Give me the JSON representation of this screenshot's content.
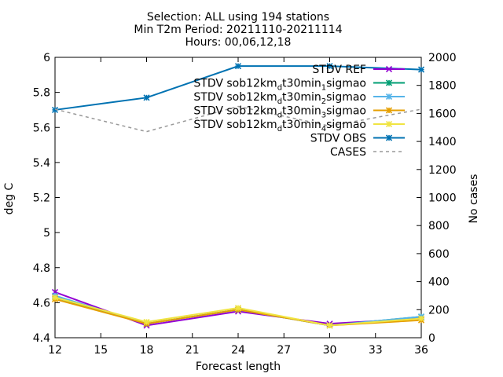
{
  "chart_data": {
    "type": "line",
    "title_lines": [
      "Selection: ALL using    194 stations",
      "Min T2m   Period: 20211110-20211114",
      "Hours: 00,06,12,18"
    ],
    "xlabel": "Forecast length",
    "ylabel": "deg C",
    "y2label": "No cases",
    "xlim": [
      12,
      36
    ],
    "ylim": [
      4.4,
      6.0
    ],
    "y2lim": [
      0,
      2000
    ],
    "xticks": [
      12,
      15,
      18,
      21,
      24,
      27,
      30,
      33,
      36
    ],
    "yticks": [
      4.4,
      4.6,
      4.8,
      5,
      5.2,
      5.4,
      5.6,
      5.8,
      6
    ],
    "y2ticks": [
      0,
      200,
      400,
      600,
      800,
      1000,
      1200,
      1400,
      1600,
      1800,
      2000
    ],
    "legend_position": "top-right",
    "x": [
      12,
      18,
      24,
      30,
      36
    ],
    "series": [
      {
        "name": "STDV REF",
        "name_parts": [],
        "color": "#9400d3",
        "marker": "cross",
        "axis": "left",
        "values": [
          4.66,
          4.47,
          4.55,
          4.48,
          4.51
        ]
      },
      {
        "name": "STDV sob12km_d_t30min_1_sigmao",
        "name_parts": [
          [
            "STDV sob12km",
            ""
          ],
          [
            "d",
            "sub"
          ],
          [
            "t30min",
            ""
          ],
          [
            "1",
            "sub"
          ],
          [
            "sigmao",
            ""
          ]
        ],
        "color": "#009e73",
        "marker": "star",
        "axis": "left",
        "values": [
          4.63,
          4.48,
          4.56,
          4.47,
          4.52
        ]
      },
      {
        "name": "STDV sob12km_d_t30min_2_sigmao",
        "name_parts": [
          [
            "STDV sob12km",
            ""
          ],
          [
            "d",
            "sub"
          ],
          [
            "t30min",
            ""
          ],
          [
            "2",
            "sub"
          ],
          [
            "sigmao",
            ""
          ]
        ],
        "color": "#56b4e9",
        "marker": "star",
        "axis": "left",
        "values": [
          4.64,
          4.48,
          4.56,
          4.47,
          4.52
        ]
      },
      {
        "name": "STDV sob12km_d_t30min_3_sigmao",
        "name_parts": [
          [
            "STDV sob12km",
            ""
          ],
          [
            "d",
            "sub"
          ],
          [
            "t30min",
            ""
          ],
          [
            "3",
            "sub"
          ],
          [
            "sigmao",
            ""
          ]
        ],
        "color": "#e69f00",
        "marker": "star",
        "axis": "left",
        "values": [
          4.62,
          4.48,
          4.56,
          4.47,
          4.5
        ]
      },
      {
        "name": "STDV sob12km_d_t30min_4_sigmao",
        "name_parts": [
          [
            "STDV sob12km",
            ""
          ],
          [
            "d",
            "sub"
          ],
          [
            "t30min",
            ""
          ],
          [
            "4",
            "sub"
          ],
          [
            "sigmao",
            ""
          ]
        ],
        "color": "#f0e442",
        "marker": "star",
        "axis": "left",
        "values": [
          4.63,
          4.49,
          4.57,
          4.47,
          4.51
        ]
      },
      {
        "name": "STDV OBS",
        "name_parts": [],
        "color": "#0072b2",
        "marker": "star",
        "axis": "left",
        "values": [
          5.7,
          5.77,
          5.95,
          5.95,
          5.93
        ]
      },
      {
        "name": "CASES",
        "name_parts": [],
        "color": "#999999",
        "marker": "none",
        "dashed": true,
        "axis": "right",
        "values": [
          1630,
          1470,
          1650,
          1510,
          1630
        ]
      }
    ]
  }
}
